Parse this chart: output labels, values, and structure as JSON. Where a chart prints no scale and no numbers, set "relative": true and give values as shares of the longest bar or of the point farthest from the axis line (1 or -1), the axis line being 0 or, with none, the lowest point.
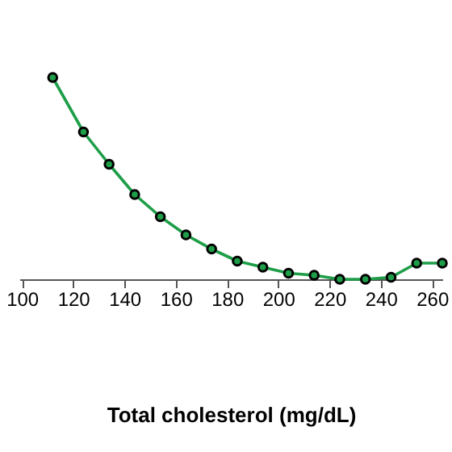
{
  "chart_data": {
    "type": "line",
    "xlabel": "Total cholesterol (mg/dL)",
    "relative": true,
    "x": [
      112,
      124,
      134,
      144,
      154,
      164,
      174,
      184,
      194,
      204,
      214,
      224,
      234,
      244,
      254,
      264
    ],
    "series": [
      {
        "color": "#1e9e48",
        "values": [
          1,
          0.73,
          0.57,
          0.42,
          0.31,
          0.22,
          0.15,
          0.09,
          0.06,
          0.03,
          0.02,
          0,
          0,
          0.01,
          0.08,
          0.08
        ]
      }
    ],
    "xlim": [
      99,
      264
    ],
    "xticks": [
      100,
      120,
      140,
      160,
      180,
      200,
      220,
      240,
      260
    ],
    "marker": "circle",
    "line_style": "solid"
  }
}
